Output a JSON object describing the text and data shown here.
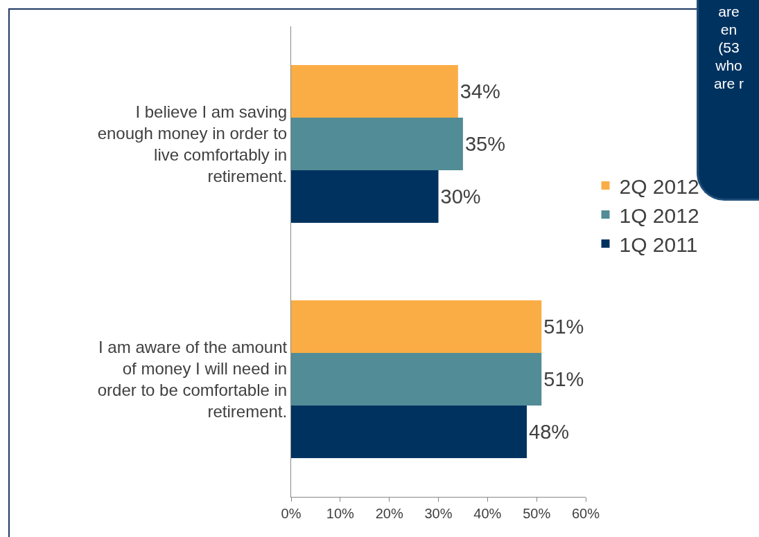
{
  "chart_data": {
    "type": "bar",
    "orientation": "horizontal",
    "categories": [
      "I believe I am saving enough money in order to live comfortably in retirement.",
      "I am aware of the amount of money I will need in order to be comfortable in retirement."
    ],
    "series": [
      {
        "name": "2Q 2012",
        "color": "#fbad45",
        "values": [
          34,
          51
        ],
        "value_labels": [
          "34%",
          "51%"
        ]
      },
      {
        "name": "1Q 2012",
        "color": "#528c96",
        "values": [
          35,
          51
        ],
        "value_labels": [
          "35%",
          "51%"
        ]
      },
      {
        "name": "1Q 2011",
        "color": "#003260",
        "values": [
          30,
          48
        ],
        "value_labels": [
          "30%",
          "48%"
        ]
      }
    ],
    "xlim": [
      0,
      60
    ],
    "xticks": [
      {
        "value": 0,
        "label": "0%"
      },
      {
        "value": 10,
        "label": "10%"
      },
      {
        "value": 20,
        "label": "20%"
      },
      {
        "value": 30,
        "label": "30%"
      },
      {
        "value": 40,
        "label": "40%"
      },
      {
        "value": 50,
        "label": "50%"
      },
      {
        "value": 60,
        "label": "60%"
      }
    ],
    "grid": false,
    "legend": "right",
    "annotations": [
      "are\nen\n(53\nwho\nare r"
    ]
  }
}
